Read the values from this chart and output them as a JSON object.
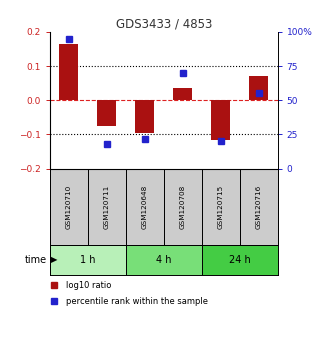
{
  "title": "GDS3433 / 4853",
  "samples": [
    "GSM120710",
    "GSM120711",
    "GSM120648",
    "GSM120708",
    "GSM120715",
    "GSM120716"
  ],
  "log10_ratio": [
    0.165,
    -0.075,
    -0.095,
    0.035,
    -0.115,
    0.07
  ],
  "percentile_rank": [
    95,
    18,
    22,
    70,
    20,
    55
  ],
  "ylim_left": [
    -0.2,
    0.2
  ],
  "ylim_right": [
    0,
    100
  ],
  "yticks_left": [
    -0.2,
    -0.1,
    0.0,
    0.1,
    0.2
  ],
  "yticks_right": [
    0,
    25,
    50,
    75,
    100
  ],
  "groups": [
    {
      "label": "1 h",
      "indices": [
        0,
        1
      ],
      "color": "#b8f0b8"
    },
    {
      "label": "4 h",
      "indices": [
        2,
        3
      ],
      "color": "#78df78"
    },
    {
      "label": "24 h",
      "indices": [
        4,
        5
      ],
      "color": "#44cc44"
    }
  ],
  "bar_color_red": "#aa1111",
  "bar_color_blue": "#2222cc",
  "bar_width": 0.5,
  "blue_square_size": 25,
  "time_label": "time",
  "legend_red": "log10 ratio",
  "legend_blue": "percentile rank within the sample",
  "title_color": "#333333",
  "left_tick_color": "#cc2222",
  "right_tick_color": "#2222cc",
  "hline_zero_color": "#dd2222",
  "hline_grid_color": "#000000",
  "sample_box_color": "#cccccc"
}
